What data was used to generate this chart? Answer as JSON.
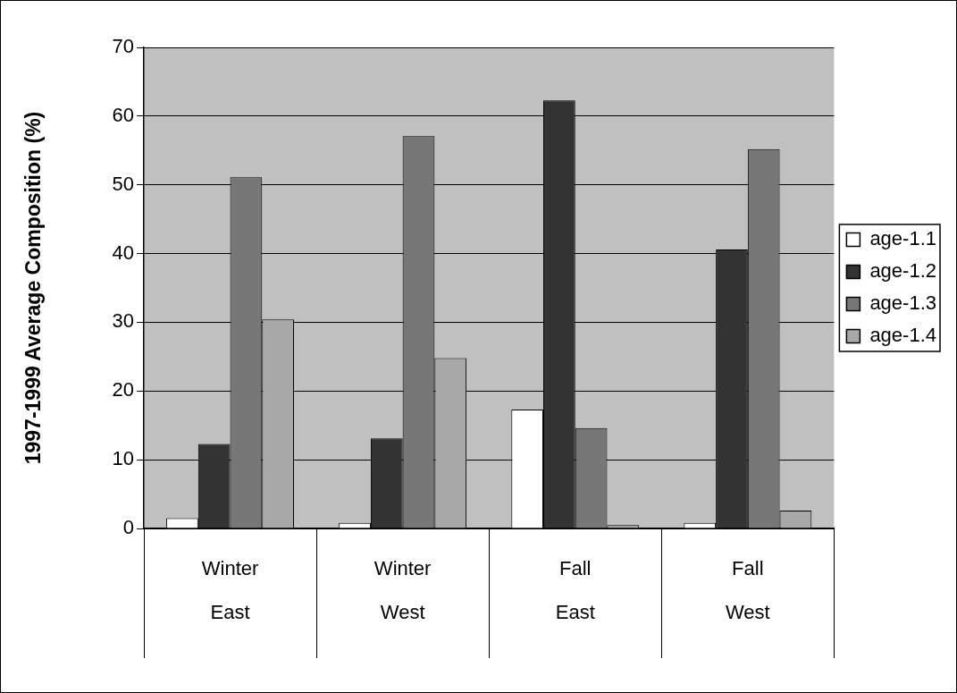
{
  "chart_data": {
    "type": "bar",
    "ylabel": "1997-1999 Average Composition (%)",
    "categories": [
      "Winter\nEast",
      "Winter\nWest",
      "Fall\nEast",
      "Fall\nWest"
    ],
    "series": [
      {
        "name": "age-1.1",
        "color": "#ffffff",
        "values": [
          1.5,
          0.8,
          17.3,
          0.8
        ]
      },
      {
        "name": "age-1.2",
        "color": "#333333",
        "values": [
          12.3,
          13.1,
          62.3,
          40.6
        ]
      },
      {
        "name": "age-1.3",
        "color": "#777777",
        "values": [
          51.1,
          57.1,
          14.6,
          55.2
        ]
      },
      {
        "name": "age-1.4",
        "color": "#a8a8a8",
        "values": [
          30.4,
          24.8,
          0.5,
          2.6
        ]
      }
    ],
    "ylim": [
      0,
      70
    ],
    "yticks": [
      0,
      10,
      20,
      30,
      40,
      50,
      60,
      70
    ],
    "grid": "y",
    "legend": "right"
  }
}
